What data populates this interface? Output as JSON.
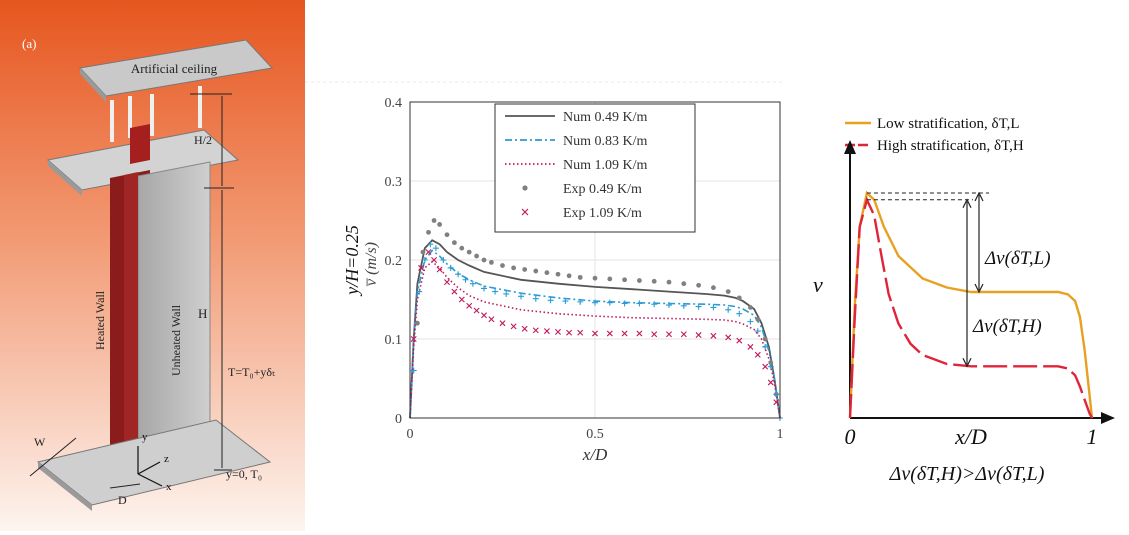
{
  "panel_a": {
    "tag": "(a)",
    "ceiling_label": "Artificial ceiling",
    "half_height_label": "H/2",
    "height_label": "H",
    "heated_wall_label": "Heated Wall",
    "unheated_wall_label": "Unheated Wall",
    "temperature_label": "T=T₀+yδₜ",
    "base_label": "y=0, T₀",
    "width_label": "W",
    "gap_label": "D",
    "axis_y": "y",
    "axis_z": "z",
    "axis_x": "x",
    "colors": {
      "bg_top": "#e85a2a",
      "bg_bottom": "#fdf3ee",
      "heated": "#8b1a1a",
      "wall": "#b8b8b8"
    }
  },
  "chart_data": [
    {
      "type": "line",
      "xlabel": "x/D",
      "ylabel_main": "y/H=0.25",
      "ylabel_sub": "v̅ (m/s)",
      "xlim": [
        0,
        1
      ],
      "ylim": [
        0,
        0.4
      ],
      "xticks": [
        "0",
        "0.5",
        "1"
      ],
      "xtick_values": [
        0,
        0.5,
        1
      ],
      "yticks": [
        "0",
        "0.1",
        "0.2",
        "0.3",
        "0.4"
      ],
      "ytick_values": [
        0,
        0.1,
        0.2,
        0.3,
        0.4
      ],
      "grid": true,
      "legend_position": "top-center",
      "series": [
        {
          "name": "Num 0.49 K/m",
          "style": "solid",
          "color": "#555555",
          "x": [
            0.0,
            0.01,
            0.02,
            0.04,
            0.06,
            0.08,
            0.1,
            0.13,
            0.16,
            0.2,
            0.3,
            0.4,
            0.5,
            0.6,
            0.7,
            0.8,
            0.85,
            0.88,
            0.9,
            0.93,
            0.95,
            0.97,
            0.985,
            1.0
          ],
          "y": [
            0.0,
            0.1,
            0.17,
            0.215,
            0.225,
            0.22,
            0.21,
            0.2,
            0.193,
            0.185,
            0.175,
            0.17,
            0.166,
            0.163,
            0.16,
            0.157,
            0.155,
            0.152,
            0.148,
            0.138,
            0.12,
            0.09,
            0.05,
            0.0
          ]
        },
        {
          "name": "Num 0.83 K/m",
          "style": "dashdot",
          "color": "#2a9bd6",
          "x": [
            0.0,
            0.01,
            0.02,
            0.04,
            0.06,
            0.08,
            0.1,
            0.13,
            0.16,
            0.2,
            0.3,
            0.4,
            0.5,
            0.6,
            0.7,
            0.8,
            0.85,
            0.88,
            0.9,
            0.93,
            0.95,
            0.97,
            0.985,
            1.0
          ],
          "y": [
            0.0,
            0.1,
            0.16,
            0.2,
            0.212,
            0.205,
            0.195,
            0.183,
            0.175,
            0.167,
            0.158,
            0.152,
            0.148,
            0.146,
            0.145,
            0.144,
            0.143,
            0.141,
            0.138,
            0.13,
            0.115,
            0.085,
            0.05,
            0.0
          ]
        },
        {
          "name": "Num 1.09 K/m",
          "style": "dotted",
          "color": "#c2185b",
          "x": [
            0.0,
            0.01,
            0.02,
            0.04,
            0.06,
            0.08,
            0.1,
            0.13,
            0.16,
            0.2,
            0.3,
            0.4,
            0.5,
            0.6,
            0.7,
            0.8,
            0.85,
            0.88,
            0.9,
            0.93,
            0.95,
            0.97,
            0.985,
            1.0
          ],
          "y": [
            0.0,
            0.09,
            0.15,
            0.19,
            0.198,
            0.19,
            0.178,
            0.165,
            0.155,
            0.147,
            0.137,
            0.132,
            0.129,
            0.127,
            0.126,
            0.125,
            0.124,
            0.122,
            0.119,
            0.112,
            0.1,
            0.075,
            0.045,
            0.0
          ]
        },
        {
          "name": "Exp 0.49 K/m",
          "style": "marker-dot",
          "color": "#808080",
          "x": [
            0.02,
            0.035,
            0.05,
            0.065,
            0.08,
            0.1,
            0.12,
            0.14,
            0.16,
            0.18,
            0.2,
            0.22,
            0.25,
            0.28,
            0.31,
            0.34,
            0.37,
            0.4,
            0.43,
            0.46,
            0.5,
            0.54,
            0.58,
            0.62,
            0.66,
            0.7,
            0.74,
            0.78,
            0.82,
            0.86,
            0.89,
            0.92,
            0.94,
            0.96,
            0.975,
            0.99
          ],
          "y": [
            0.12,
            0.21,
            0.235,
            0.25,
            0.245,
            0.232,
            0.222,
            0.215,
            0.21,
            0.205,
            0.2,
            0.197,
            0.193,
            0.19,
            0.188,
            0.186,
            0.184,
            0.182,
            0.18,
            0.178,
            0.177,
            0.176,
            0.175,
            0.174,
            0.173,
            0.172,
            0.17,
            0.168,
            0.165,
            0.16,
            0.152,
            0.14,
            0.125,
            0.1,
            0.07,
            0.03
          ]
        },
        {
          "name": "Exp 1.09 K/m",
          "style": "marker-x",
          "color": "#c2185b",
          "x": [
            0.01,
            0.03,
            0.05,
            0.065,
            0.08,
            0.1,
            0.12,
            0.14,
            0.16,
            0.18,
            0.2,
            0.22,
            0.25,
            0.28,
            0.31,
            0.34,
            0.37,
            0.4,
            0.43,
            0.46,
            0.5,
            0.54,
            0.58,
            0.62,
            0.66,
            0.7,
            0.74,
            0.78,
            0.82,
            0.86,
            0.89,
            0.92,
            0.94,
            0.96,
            0.975,
            0.99
          ],
          "y": [
            0.1,
            0.19,
            0.21,
            0.2,
            0.188,
            0.172,
            0.16,
            0.15,
            0.142,
            0.136,
            0.13,
            0.125,
            0.12,
            0.116,
            0.113,
            0.111,
            0.11,
            0.109,
            0.108,
            0.108,
            0.107,
            0.107,
            0.107,
            0.107,
            0.106,
            0.106,
            0.106,
            0.105,
            0.104,
            0.102,
            0.098,
            0.09,
            0.08,
            0.065,
            0.045,
            0.02
          ]
        },
        {
          "name": "",
          "style": "marker-plus",
          "color": "#2a9bd6",
          "x": [
            0.01,
            0.025,
            0.04,
            0.055,
            0.07,
            0.09,
            0.11,
            0.13,
            0.15,
            0.17,
            0.2,
            0.23,
            0.26,
            0.3,
            0.34,
            0.38,
            0.42,
            0.46,
            0.5,
            0.54,
            0.58,
            0.62,
            0.66,
            0.7,
            0.74,
            0.78,
            0.82,
            0.86,
            0.89,
            0.92,
            0.94,
            0.96,
            0.975,
            0.99,
            1.0
          ],
          "y": [
            0.06,
            0.16,
            0.2,
            0.22,
            0.215,
            0.2,
            0.19,
            0.182,
            0.175,
            0.17,
            0.164,
            0.16,
            0.157,
            0.154,
            0.151,
            0.149,
            0.148,
            0.147,
            0.146,
            0.146,
            0.145,
            0.145,
            0.144,
            0.143,
            0.142,
            0.141,
            0.14,
            0.137,
            0.132,
            0.122,
            0.11,
            0.09,
            0.065,
            0.03,
            0.0
          ]
        }
      ]
    },
    {
      "type": "line",
      "xlabel": "x/D",
      "ylabel": "v",
      "xticks": [
        "0",
        "1"
      ],
      "legend_position": "top",
      "caption": "Δv(δT,H)>Δv(δT,L)",
      "annotations": [
        "Δv(δT,L)",
        "Δv(δT,H)"
      ],
      "series": [
        {
          "name": "Low stratification, δT,L",
          "color": "#e8a020",
          "style": "solid",
          "x": [
            0.0,
            0.02,
            0.04,
            0.07,
            0.1,
            0.14,
            0.2,
            0.3,
            0.4,
            0.5,
            0.6,
            0.7,
            0.8,
            0.86,
            0.9,
            0.93,
            0.95,
            0.97,
            0.99,
            1.0
          ],
          "y": [
            0.0,
            0.5,
            0.85,
            1.0,
            0.97,
            0.85,
            0.72,
            0.62,
            0.58,
            0.56,
            0.56,
            0.56,
            0.56,
            0.56,
            0.55,
            0.52,
            0.45,
            0.3,
            0.1,
            0.0
          ]
        },
        {
          "name": "High stratification, δT,H",
          "color": "#e0243a",
          "style": "longdash",
          "x": [
            0.0,
            0.02,
            0.04,
            0.07,
            0.1,
            0.13,
            0.16,
            0.2,
            0.25,
            0.3,
            0.4,
            0.5,
            0.6,
            0.7,
            0.8,
            0.86,
            0.9,
            0.93,
            0.95,
            0.97,
            0.99,
            1.0
          ],
          "y": [
            0.0,
            0.45,
            0.85,
            0.97,
            0.9,
            0.72,
            0.55,
            0.42,
            0.33,
            0.28,
            0.24,
            0.23,
            0.23,
            0.23,
            0.23,
            0.23,
            0.22,
            0.19,
            0.14,
            0.08,
            0.02,
            0.0
          ]
        }
      ]
    }
  ]
}
